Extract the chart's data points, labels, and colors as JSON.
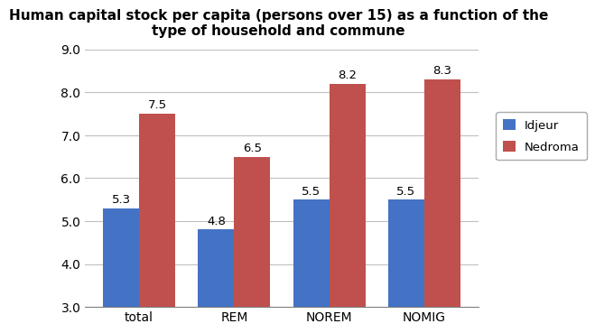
{
  "title": "Human capital stock per capita (persons over 15) as a function of the\ntype of household and commune",
  "categories": [
    "total",
    "REM",
    "NOREM",
    "NOMIG"
  ],
  "idjeur": [
    5.3,
    4.8,
    5.5,
    5.5
  ],
  "nedroma": [
    7.5,
    6.5,
    8.2,
    8.3
  ],
  "idjeur_color": "#4472C4",
  "nedroma_color": "#C0504D",
  "ylim": [
    3.0,
    9.0
  ],
  "yticks": [
    3.0,
    4.0,
    5.0,
    6.0,
    7.0,
    8.0,
    9.0
  ],
  "bar_width": 0.38,
  "legend_labels": [
    "Idjeur",
    "Nedroma"
  ],
  "title_fontsize": 11,
  "tick_fontsize": 10,
  "label_fontsize": 9.5,
  "background_color": "#ffffff",
  "plot_bg_color": "#ffffff",
  "grid_color": "#c0c0c0"
}
